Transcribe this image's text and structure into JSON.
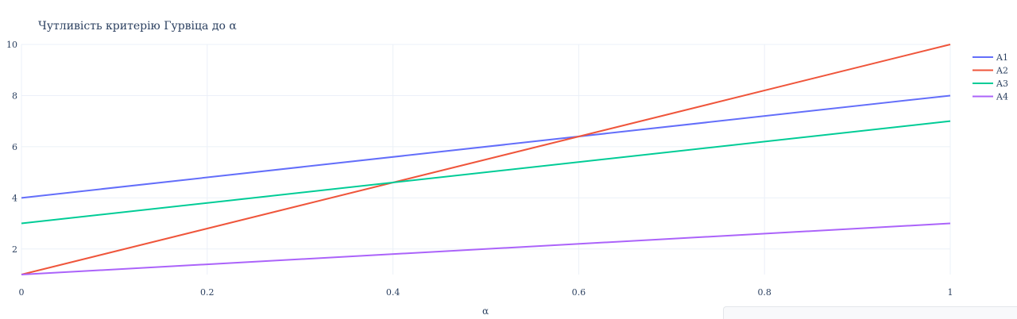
{
  "chart_data": {
    "type": "line",
    "title": "Чутливість критерію Гурвіца до α",
    "xlabel": "α",
    "ylabel": "",
    "xlim": [
      0,
      1
    ],
    "ylim": [
      1,
      10
    ],
    "x_ticks": [
      0,
      0.2,
      0.4,
      0.6,
      0.8,
      1
    ],
    "x_tick_labels": [
      "0",
      "0.2",
      "0.4",
      "0.6",
      "0.8",
      "1"
    ],
    "y_ticks": [
      2,
      4,
      6,
      8,
      10
    ],
    "y_tick_labels": [
      "2",
      "4",
      "6",
      "8",
      "10"
    ],
    "grid": true,
    "legend_position": "top-right",
    "x": [
      0,
      1
    ],
    "series": [
      {
        "name": "A1",
        "color": "#636efa",
        "values": [
          4,
          8
        ]
      },
      {
        "name": "A2",
        "color": "#ef553b",
        "values": [
          1,
          10
        ]
      },
      {
        "name": "A3",
        "color": "#00cc96",
        "values": [
          3,
          7
        ]
      },
      {
        "name": "A4",
        "color": "#ab63fa",
        "values": [
          1,
          3
        ]
      }
    ]
  }
}
